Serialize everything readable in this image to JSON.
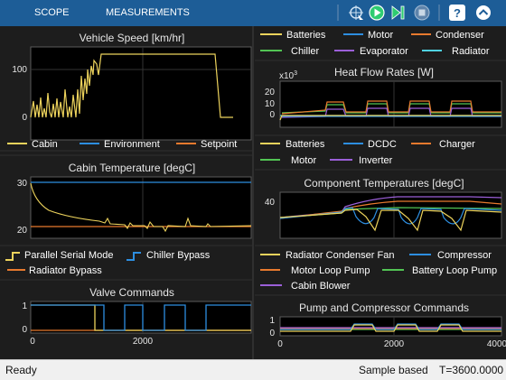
{
  "toolbar": {
    "tabs": [
      "SCOPE",
      "MEASUREMENTS"
    ],
    "icons": [
      "cursor-icon",
      "run-icon",
      "step-forward-icon",
      "stop-icon",
      "help-icon",
      "collapse-icon"
    ]
  },
  "plots": {
    "vehicle_speed": {
      "title": "Vehicle Speed [km/hr]",
      "yticks": [
        "100",
        "0"
      ],
      "legend": []
    },
    "cabin_temp": {
      "title": "Cabin Temperature [degC]",
      "yticks": [
        "30",
        "20"
      ],
      "legend": [
        "Cabin",
        "Environment",
        "Setpoint"
      ]
    },
    "valve": {
      "title": "Valve Commands",
      "yticks": [
        "1",
        "0"
      ],
      "xticks": [
        "0",
        "2000"
      ],
      "legend": [
        "Parallel Serial Mode",
        "Chiller Bypass",
        "Radiator Bypass"
      ]
    },
    "heat_flow": {
      "title": "Heat Flow Rates [W]",
      "multiplier_base": "x10",
      "multiplier_exp": "3",
      "yticks": [
        "20",
        "10",
        "0"
      ],
      "legend": [
        "Batteries",
        "Motor",
        "Condenser",
        "Chiller",
        "Evaporator",
        "Radiator"
      ]
    },
    "component_temp": {
      "title": "Component Temperatures [degC]",
      "yticks": [
        "40"
      ],
      "legend": [
        "Batteries",
        "DCDC",
        "Charger",
        "Motor",
        "Inverter"
      ]
    },
    "pump": {
      "title": "Pump and Compressor Commands",
      "yticks": [
        "1",
        "0"
      ],
      "xticks": [
        "0",
        "2000",
        "4000"
      ],
      "legend": [
        "Radiator Condenser Fan",
        "Compressor",
        "Motor Loop Pump",
        "Battery Loop Pump",
        "Cabin Blower"
      ]
    }
  },
  "colors": {
    "yellow": "#edd35c",
    "blue": "#2d8ee0",
    "orange": "#e87a2e",
    "purple": "#9b5fd8",
    "green": "#52c454",
    "cyan": "#4fd1e0",
    "background": "#000000",
    "panel": "#1d1d1d",
    "toolbar": "#1d5d97"
  },
  "status": {
    "left": "Ready",
    "mode": "Sample based",
    "time": "T=3600.0000"
  }
}
